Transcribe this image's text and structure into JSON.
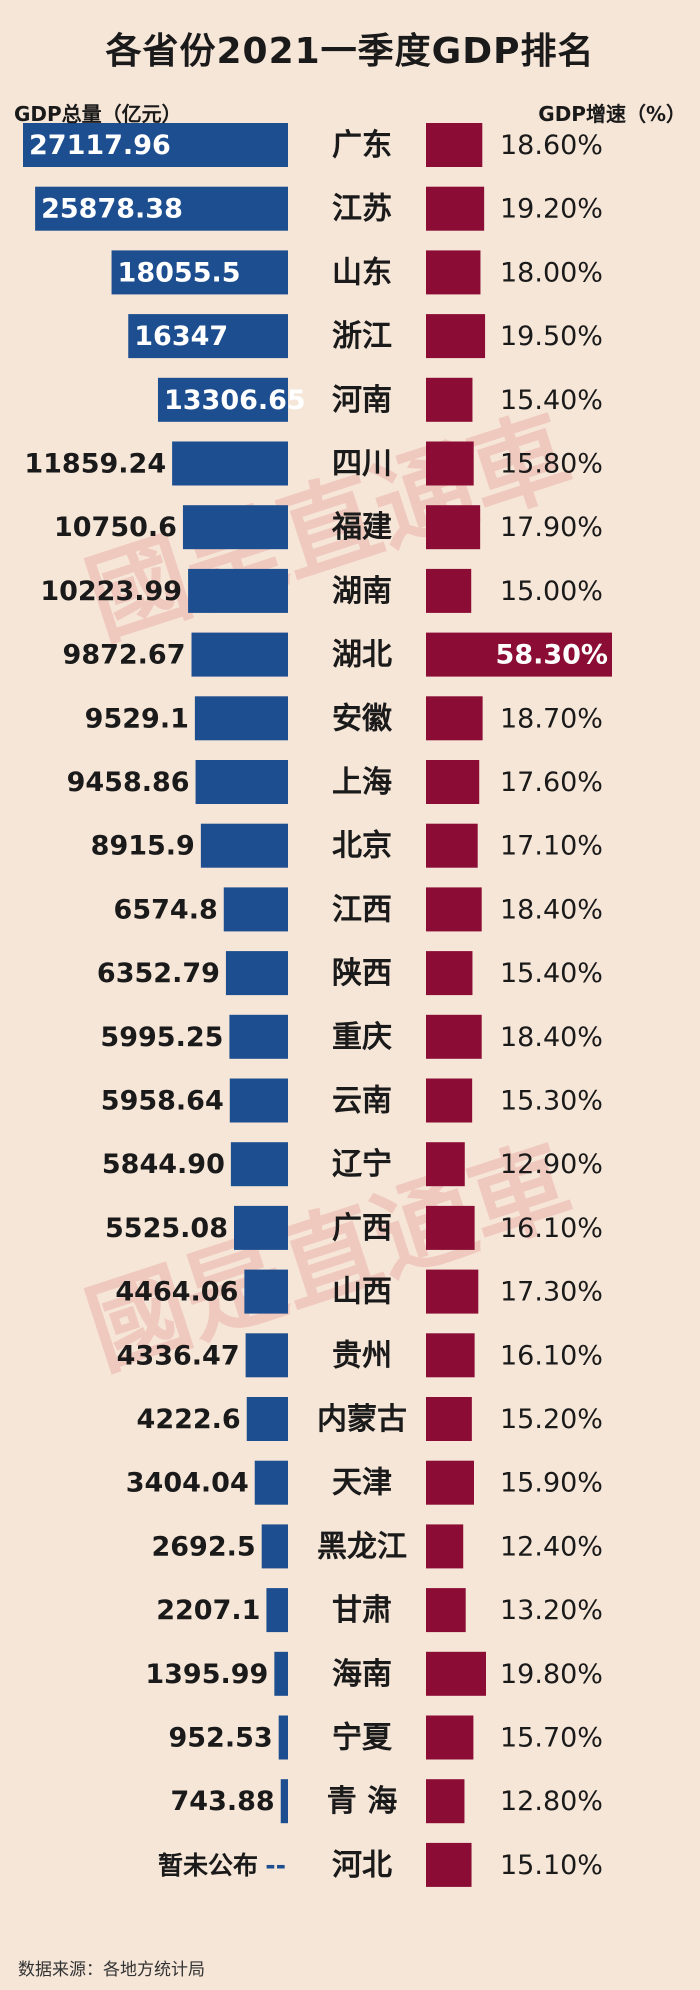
{
  "title": "各省份2021一季度GDP排名",
  "left_label": "GDP总量（亿元）",
  "right_label": "GDP增速（%）",
  "source": "数据来源：各地方统计局",
  "watermark": "國是直通車",
  "colors": {
    "background": "#f6e6d8",
    "gdp_bar": "#1d4e8f",
    "growth_bar": "#8b0d35",
    "watermark": "#e9a6a0"
  },
  "chart_data": {
    "type": "bar",
    "title": "各省份2021一季度GDP排名",
    "categories": [
      "广东",
      "江苏",
      "山东",
      "浙江",
      "河南",
      "四川",
      "福建",
      "湖南",
      "湖北",
      "安徽",
      "上海",
      "北京",
      "江西",
      "陕西",
      "重庆",
      "云南",
      "辽宁",
      "广西",
      "山西",
      "贵州",
      "内蒙古",
      "天津",
      "黑龙江",
      "甘肃",
      "海南",
      "宁夏",
      "青 海",
      "河北"
    ],
    "series": [
      {
        "name": "GDP总量（亿元）",
        "labels": [
          "27117.96",
          "25878.38",
          "18055.5",
          "16347",
          "13306.65",
          "11859.24",
          "10750.6",
          "10223.99",
          "9872.67",
          "9529.1",
          "9458.86",
          "8915.9",
          "6574.8",
          "6352.79",
          "5995.25",
          "5958.64",
          "5844.90",
          "5525.08",
          "4464.06",
          "4336.47",
          "4222.6",
          "3404.04",
          "2692.5",
          "2207.1",
          "1395.99",
          "952.53",
          "743.88",
          "暂未公布"
        ],
        "values": [
          27117.96,
          25878.38,
          18055.5,
          16347,
          13306.65,
          11859.24,
          10750.6,
          10223.99,
          9872.67,
          9529.1,
          9458.86,
          8915.9,
          6574.8,
          6352.79,
          5995.25,
          5958.64,
          5844.9,
          5525.08,
          4464.06,
          4336.47,
          4222.6,
          3404.04,
          2692.5,
          2207.1,
          1395.99,
          952.53,
          743.88,
          null
        ]
      },
      {
        "name": "GDP增速（%）",
        "labels": [
          "18.60%",
          "19.20%",
          "18.00%",
          "19.50%",
          "15.40%",
          "15.80%",
          "17.90%",
          "15.00%",
          "58.30%",
          "18.70%",
          "17.60%",
          "17.10%",
          "18.40%",
          "15.40%",
          "18.40%",
          "15.30%",
          "12.90%",
          "16.10%",
          "17.30%",
          "16.10%",
          "15.20%",
          "15.90%",
          "12.40%",
          "13.20%",
          "19.80%",
          "15.70%",
          "12.80%",
          "15.10%"
        ],
        "values": [
          18.6,
          19.2,
          18.0,
          19.5,
          15.4,
          15.8,
          17.9,
          15.0,
          58.3,
          18.7,
          17.6,
          17.1,
          18.4,
          15.4,
          18.4,
          15.3,
          12.9,
          16.1,
          17.3,
          16.1,
          15.2,
          15.9,
          12.4,
          13.2,
          19.8,
          15.7,
          12.8,
          15.1
        ]
      }
    ],
    "missing_marker": "--"
  }
}
